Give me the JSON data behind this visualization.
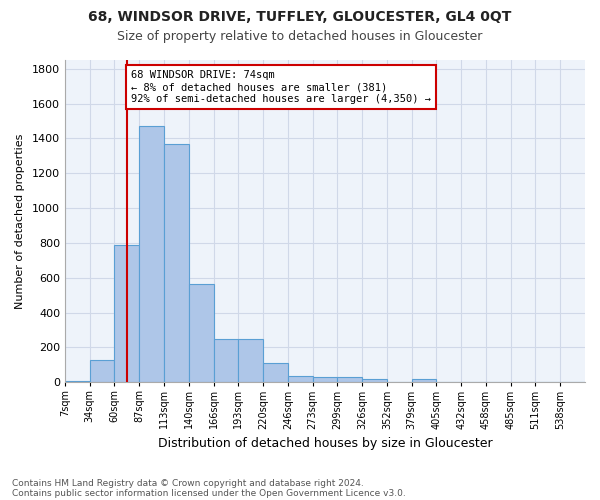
{
  "title": "68, WINDSOR DRIVE, TUFFLEY, GLOUCESTER, GL4 0QT",
  "subtitle": "Size of property relative to detached houses in Gloucester",
  "xlabel": "Distribution of detached houses by size in Gloucester",
  "ylabel": "Number of detached properties",
  "footnote1": "Contains HM Land Registry data © Crown copyright and database right 2024.",
  "footnote2": "Contains public sector information licensed under the Open Government Licence v3.0.",
  "categories": [
    "7sqm",
    "34sqm",
    "60sqm",
    "87sqm",
    "113sqm",
    "140sqm",
    "166sqm",
    "193sqm",
    "220sqm",
    "246sqm",
    "273sqm",
    "299sqm",
    "326sqm",
    "352sqm",
    "379sqm",
    "405sqm",
    "432sqm",
    "458sqm",
    "485sqm",
    "511sqm",
    "538sqm"
  ],
  "values": [
    10,
    130,
    790,
    1470,
    1370,
    565,
    250,
    250,
    110,
    38,
    32,
    32,
    20,
    0,
    20,
    0,
    0,
    0,
    0,
    0,
    0
  ],
  "bar_color": "#aec6e8",
  "bar_edge_color": "#5a9fd4",
  "grid_color": "#d0d8e8",
  "bg_color": "#eef3fa",
  "property_line_color": "#cc0000",
  "annotation_box_color": "#cc0000",
  "ylim": [
    0,
    1850
  ],
  "yticks": [
    0,
    200,
    400,
    600,
    800,
    1000,
    1200,
    1400,
    1600,
    1800
  ],
  "property_bar_index": 2,
  "annotation_text_line1": "68 WINDSOR DRIVE: 74sqm",
  "annotation_text_line2": "← 8% of detached houses are smaller (381)",
  "annotation_text_line3": "92% of semi-detached houses are larger (4,350) →"
}
